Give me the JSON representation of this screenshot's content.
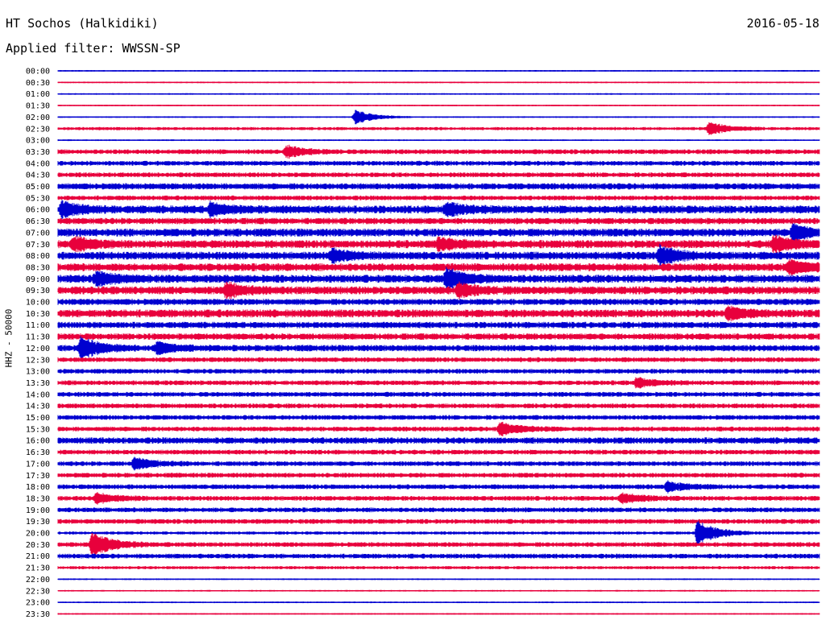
{
  "header": {
    "station": "HT Sochos (Halkidiki)",
    "date": "2016-05-18",
    "filter": "Applied filter: WWSSN-SP"
  },
  "chart_data": {
    "type": "line",
    "title": "HT Sochos (Halkidiki)",
    "subtitle": "Applied filter: WWSSN-SP",
    "ylabel": "HHZ - 50000",
    "row_labels": [
      "00:00",
      "00:30",
      "01:00",
      "01:30",
      "02:00",
      "02:30",
      "03:00",
      "03:30",
      "04:00",
      "04:30",
      "05:00",
      "05:30",
      "06:00",
      "06:30",
      "07:00",
      "07:30",
      "08:00",
      "08:30",
      "09:00",
      "09:30",
      "10:00",
      "10:30",
      "11:00",
      "11:30",
      "12:00",
      "12:30",
      "13:00",
      "13:30",
      "14:00",
      "14:30",
      "15:00",
      "15:30",
      "16:00",
      "16:30",
      "17:00",
      "17:30",
      "18:00",
      "18:30",
      "19:00",
      "19:30",
      "20:00",
      "20:30",
      "21:00",
      "21:30",
      "22:00",
      "22:30",
      "23:00",
      "23:30"
    ],
    "row_colors": [
      "#0000d0",
      "#e8003c"
    ],
    "row_amplitude": [
      1,
      1,
      1,
      1,
      1,
      2,
      1,
      3,
      3,
      3,
      4,
      3,
      5,
      4,
      5,
      5,
      5,
      5,
      5,
      5,
      4,
      5,
      4,
      4,
      4,
      3,
      3,
      3,
      3,
      3,
      3,
      3,
      4,
      3,
      3,
      3,
      3,
      3,
      3,
      3,
      2,
      3,
      3,
      2,
      1,
      1,
      1,
      1
    ],
    "events": [
      {
        "row": 4,
        "x": 0.39,
        "amp": 9
      },
      {
        "row": 5,
        "x": 0.855,
        "amp": 8
      },
      {
        "row": 7,
        "x": 0.3,
        "amp": 7
      },
      {
        "row": 12,
        "x": 0.005,
        "amp": 8
      },
      {
        "row": 12,
        "x": 0.2,
        "amp": 7
      },
      {
        "row": 12,
        "x": 0.51,
        "amp": 7
      },
      {
        "row": 14,
        "x": 0.965,
        "amp": 9
      },
      {
        "row": 15,
        "x": 0.02,
        "amp": 8
      },
      {
        "row": 15,
        "x": 0.5,
        "amp": 7
      },
      {
        "row": 15,
        "x": 0.94,
        "amp": 9
      },
      {
        "row": 16,
        "x": 0.36,
        "amp": 7
      },
      {
        "row": 16,
        "x": 0.79,
        "amp": 11
      },
      {
        "row": 17,
        "x": 0.96,
        "amp": 8
      },
      {
        "row": 18,
        "x": 0.05,
        "amp": 8
      },
      {
        "row": 18,
        "x": 0.51,
        "amp": 12
      },
      {
        "row": 19,
        "x": 0.22,
        "amp": 8
      },
      {
        "row": 19,
        "x": 0.525,
        "amp": 8
      },
      {
        "row": 21,
        "x": 0.88,
        "amp": 7
      },
      {
        "row": 24,
        "x": 0.03,
        "amp": 13
      },
      {
        "row": 24,
        "x": 0.13,
        "amp": 7
      },
      {
        "row": 27,
        "x": 0.76,
        "amp": 6
      },
      {
        "row": 31,
        "x": 0.58,
        "amp": 8
      },
      {
        "row": 34,
        "x": 0.1,
        "amp": 7
      },
      {
        "row": 36,
        "x": 0.8,
        "amp": 6
      },
      {
        "row": 37,
        "x": 0.05,
        "amp": 6
      },
      {
        "row": 37,
        "x": 0.74,
        "amp": 6
      },
      {
        "row": 40,
        "x": 0.84,
        "amp": 16
      },
      {
        "row": 41,
        "x": 0.045,
        "amp": 16
      }
    ]
  }
}
